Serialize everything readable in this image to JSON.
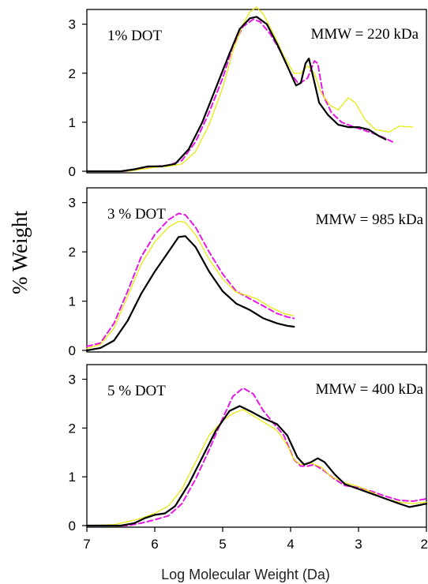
{
  "chart_data": {
    "type": "line",
    "ylabel": "% Weight",
    "xlabel": "Log Molecular Weight   (Da)",
    "xlim": [
      7,
      2
    ],
    "x_ticks": [
      "7",
      "6",
      "5",
      "4",
      "3",
      "2"
    ],
    "colors": {
      "solid": "#000000",
      "dashed": "#e41ae4",
      "dotted": "#e8e800"
    },
    "panels": [
      {
        "label": "1% DOT",
        "mmw": "MMW = 220 kDa",
        "ylim": [
          0,
          3.3
        ],
        "y_ticks": [
          "0",
          "1",
          "2",
          "3"
        ],
        "series": [
          {
            "style": "solid",
            "points": [
              [
                7,
                0
              ],
              [
                6.5,
                0
              ],
              [
                6.3,
                0.04
              ],
              [
                6.1,
                0.1
              ],
              [
                5.9,
                0.1
              ],
              [
                5.7,
                0.15
              ],
              [
                5.5,
                0.45
              ],
              [
                5.3,
                1.0
              ],
              [
                5.1,
                1.7
              ],
              [
                4.9,
                2.4
              ],
              [
                4.75,
                2.9
              ],
              [
                4.6,
                3.12
              ],
              [
                4.5,
                3.15
              ],
              [
                4.35,
                3.0
              ],
              [
                4.2,
                2.6
              ],
              [
                4.05,
                2.15
              ],
              [
                3.92,
                1.75
              ],
              [
                3.85,
                1.8
              ],
              [
                3.78,
                2.2
              ],
              [
                3.73,
                2.3
              ],
              [
                3.68,
                2.0
              ],
              [
                3.58,
                1.4
              ],
              [
                3.45,
                1.15
              ],
              [
                3.3,
                0.95
              ],
              [
                3.15,
                0.9
              ],
              [
                3.0,
                0.9
              ],
              [
                2.85,
                0.85
              ],
              [
                2.7,
                0.72
              ],
              [
                2.6,
                0.65
              ]
            ]
          },
          {
            "style": "dashed",
            "points": [
              [
                7,
                0
              ],
              [
                6.4,
                0
              ],
              [
                6.2,
                0.06
              ],
              [
                6.0,
                0.1
              ],
              [
                5.8,
                0.12
              ],
              [
                5.6,
                0.22
              ],
              [
                5.4,
                0.6
              ],
              [
                5.2,
                1.2
              ],
              [
                5.0,
                1.9
              ],
              [
                4.85,
                2.55
              ],
              [
                4.7,
                2.95
              ],
              [
                4.55,
                3.1
              ],
              [
                4.45,
                3.05
              ],
              [
                4.3,
                2.8
              ],
              [
                4.15,
                2.45
              ],
              [
                4.0,
                2.0
              ],
              [
                3.88,
                1.78
              ],
              [
                3.75,
                1.9
              ],
              [
                3.65,
                2.25
              ],
              [
                3.6,
                2.2
              ],
              [
                3.52,
                1.55
              ],
              [
                3.4,
                1.2
              ],
              [
                3.25,
                1.0
              ],
              [
                3.1,
                0.92
              ],
              [
                2.95,
                0.85
              ],
              [
                2.8,
                0.78
              ],
              [
                2.65,
                0.7
              ],
              [
                2.5,
                0.6
              ]
            ]
          },
          {
            "style": "dotted",
            "points": [
              [
                7,
                0
              ],
              [
                6.4,
                0
              ],
              [
                6.2,
                0.04
              ],
              [
                6.0,
                0.08
              ],
              [
                5.8,
                0.1
              ],
              [
                5.6,
                0.15
              ],
              [
                5.4,
                0.4
              ],
              [
                5.2,
                0.95
              ],
              [
                5.0,
                1.7
              ],
              [
                4.85,
                2.45
              ],
              [
                4.7,
                3.0
              ],
              [
                4.6,
                3.25
              ],
              [
                4.5,
                3.35
              ],
              [
                4.4,
                3.2
              ],
              [
                4.25,
                2.8
              ],
              [
                4.1,
                2.35
              ],
              [
                3.95,
                2.0
              ],
              [
                3.85,
                2.0
              ],
              [
                3.75,
                2.15
              ],
              [
                3.65,
                2.0
              ],
              [
                3.55,
                1.6
              ],
              [
                3.42,
                1.35
              ],
              [
                3.3,
                1.25
              ],
              [
                3.15,
                1.5
              ],
              [
                3.05,
                1.4
              ],
              [
                2.9,
                1.05
              ],
              [
                2.75,
                0.85
              ],
              [
                2.55,
                0.8
              ],
              [
                2.4,
                0.92
              ],
              [
                2.2,
                0.9
              ]
            ]
          }
        ]
      },
      {
        "label": "3 % DOT",
        "mmw": "MMW = 985 kDa",
        "ylim": [
          0,
          3.3
        ],
        "y_ticks": [
          "0",
          "1",
          "2",
          "3"
        ],
        "series": [
          {
            "style": "solid",
            "points": [
              [
                7,
                0
              ],
              [
                6.8,
                0.05
              ],
              [
                6.6,
                0.2
              ],
              [
                6.4,
                0.6
              ],
              [
                6.2,
                1.15
              ],
              [
                6.0,
                1.6
              ],
              [
                5.8,
                2.0
              ],
              [
                5.65,
                2.3
              ],
              [
                5.55,
                2.32
              ],
              [
                5.4,
                2.1
              ],
              [
                5.2,
                1.6
              ],
              [
                5.0,
                1.2
              ],
              [
                4.8,
                0.95
              ],
              [
                4.6,
                0.82
              ],
              [
                4.4,
                0.65
              ],
              [
                4.2,
                0.55
              ],
              [
                4.05,
                0.5
              ],
              [
                3.95,
                0.48
              ]
            ]
          },
          {
            "style": "dashed",
            "points": [
              [
                7,
                0.08
              ],
              [
                6.8,
                0.15
              ],
              [
                6.6,
                0.55
              ],
              [
                6.4,
                1.2
              ],
              [
                6.2,
                1.9
              ],
              [
                6.0,
                2.35
              ],
              [
                5.8,
                2.65
              ],
              [
                5.65,
                2.78
              ],
              [
                5.55,
                2.75
              ],
              [
                5.4,
                2.5
              ],
              [
                5.2,
                2.0
              ],
              [
                5.0,
                1.55
              ],
              [
                4.8,
                1.2
              ],
              [
                4.6,
                1.05
              ],
              [
                4.4,
                0.9
              ],
              [
                4.2,
                0.75
              ],
              [
                4.05,
                0.68
              ],
              [
                3.95,
                0.65
              ]
            ]
          },
          {
            "style": "dotted",
            "points": [
              [
                7,
                0.04
              ],
              [
                6.8,
                0.12
              ],
              [
                6.6,
                0.45
              ],
              [
                6.4,
                1.1
              ],
              [
                6.2,
                1.75
              ],
              [
                6.0,
                2.2
              ],
              [
                5.8,
                2.5
              ],
              [
                5.65,
                2.62
              ],
              [
                5.55,
                2.6
              ],
              [
                5.4,
                2.35
              ],
              [
                5.2,
                1.85
              ],
              [
                5.0,
                1.45
              ],
              [
                4.8,
                1.18
              ],
              [
                4.65,
                1.12
              ],
              [
                4.5,
                1.05
              ],
              [
                4.3,
                0.88
              ],
              [
                4.1,
                0.75
              ],
              [
                3.95,
                0.7
              ]
            ]
          }
        ]
      },
      {
        "label": "5 % DOT",
        "mmw": "MMW = 400 kDa",
        "ylim": [
          0,
          3.3
        ],
        "y_ticks": [
          "0",
          "1",
          "2",
          "3"
        ],
        "series": [
          {
            "style": "solid",
            "points": [
              [
                7,
                0
              ],
              [
                6.5,
                0
              ],
              [
                6.3,
                0.05
              ],
              [
                6.15,
                0.15
              ],
              [
                6.0,
                0.22
              ],
              [
                5.85,
                0.25
              ],
              [
                5.7,
                0.4
              ],
              [
                5.5,
                0.85
              ],
              [
                5.3,
                1.4
              ],
              [
                5.1,
                1.95
              ],
              [
                4.9,
                2.35
              ],
              [
                4.75,
                2.45
              ],
              [
                4.6,
                2.35
              ],
              [
                4.4,
                2.2
              ],
              [
                4.2,
                2.08
              ],
              [
                4.05,
                1.85
              ],
              [
                3.9,
                1.4
              ],
              [
                3.8,
                1.25
              ],
              [
                3.7,
                1.3
              ],
              [
                3.6,
                1.38
              ],
              [
                3.5,
                1.3
              ],
              [
                3.35,
                1.05
              ],
              [
                3.2,
                0.85
              ],
              [
                3.0,
                0.75
              ],
              [
                2.8,
                0.65
              ],
              [
                2.6,
                0.55
              ],
              [
                2.4,
                0.45
              ],
              [
                2.25,
                0.38
              ],
              [
                2.1,
                0.42
              ],
              [
                2.0,
                0.45
              ]
            ]
          },
          {
            "style": "dashed",
            "points": [
              [
                7,
                0
              ],
              [
                6.4,
                0
              ],
              [
                6.2,
                0.05
              ],
              [
                6.0,
                0.12
              ],
              [
                5.8,
                0.2
              ],
              [
                5.6,
                0.45
              ],
              [
                5.4,
                0.95
              ],
              [
                5.2,
                1.55
              ],
              [
                5.0,
                2.2
              ],
              [
                4.85,
                2.65
              ],
              [
                4.7,
                2.82
              ],
              [
                4.55,
                2.7
              ],
              [
                4.4,
                2.35
              ],
              [
                4.25,
                2.1
              ],
              [
                4.1,
                1.85
              ],
              [
                3.95,
                1.35
              ],
              [
                3.85,
                1.22
              ],
              [
                3.75,
                1.22
              ],
              [
                3.65,
                1.25
              ],
              [
                3.5,
                1.12
              ],
              [
                3.35,
                0.95
              ],
              [
                3.2,
                0.82
              ],
              [
                3.0,
                0.78
              ],
              [
                2.8,
                0.7
              ],
              [
                2.6,
                0.6
              ],
              [
                2.4,
                0.52
              ],
              [
                2.2,
                0.5
              ],
              [
                2.0,
                0.55
              ]
            ]
          },
          {
            "style": "dotted",
            "points": [
              [
                7,
                0
              ],
              [
                6.6,
                0.02
              ],
              [
                6.4,
                0.08
              ],
              [
                6.2,
                0.15
              ],
              [
                6.0,
                0.25
              ],
              [
                5.8,
                0.4
              ],
              [
                5.6,
                0.75
              ],
              [
                5.4,
                1.3
              ],
              [
                5.2,
                1.85
              ],
              [
                5.0,
                2.15
              ],
              [
                4.85,
                2.3
              ],
              [
                4.7,
                2.38
              ],
              [
                4.55,
                2.25
              ],
              [
                4.35,
                2.08
              ],
              [
                4.2,
                1.95
              ],
              [
                4.05,
                1.65
              ],
              [
                3.95,
                1.35
              ],
              [
                3.85,
                1.25
              ],
              [
                3.7,
                1.28
              ],
              [
                3.55,
                1.2
              ],
              [
                3.4,
                1.0
              ],
              [
                3.2,
                0.88
              ],
              [
                3.0,
                0.8
              ],
              [
                2.8,
                0.68
              ],
              [
                2.6,
                0.55
              ],
              [
                2.4,
                0.48
              ],
              [
                2.2,
                0.45
              ],
              [
                2.0,
                0.48
              ]
            ]
          }
        ]
      }
    ]
  }
}
